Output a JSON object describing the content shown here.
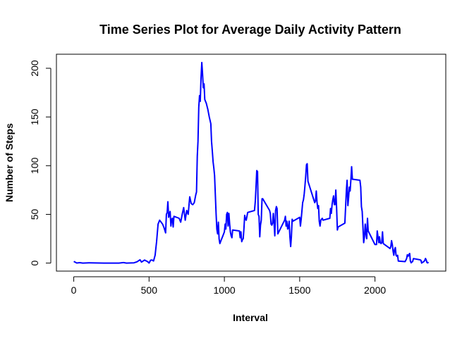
{
  "chart_data": {
    "type": "line",
    "title": "Time Series Plot for Average Daily Activity Pattern",
    "xlabel": "Interval",
    "ylabel": "Number of Steps",
    "xlim": [
      -115,
      2470
    ],
    "ylim": [
      -8.24,
      214.43
    ],
    "xticks": [
      0,
      500,
      1000,
      1500,
      2000
    ],
    "yticks": [
      0,
      50,
      100,
      150,
      200
    ],
    "grid": false,
    "legend": "none",
    "series": [
      {
        "color": "#0000ff",
        "points": [
          [
            0,
            1.7
          ],
          [
            20,
            0.1
          ],
          [
            40,
            0.4
          ],
          [
            60,
            0.0
          ],
          [
            100,
            0.3
          ],
          [
            200,
            0.0
          ],
          [
            300,
            0.0
          ],
          [
            330,
            0.5
          ],
          [
            350,
            0.0
          ],
          [
            400,
            0.3
          ],
          [
            420,
            1.3
          ],
          [
            440,
            3.4
          ],
          [
            450,
            1.0
          ],
          [
            470,
            3.1
          ],
          [
            490,
            1.5
          ],
          [
            500,
            0.0
          ],
          [
            510,
            3.0
          ],
          [
            520,
            3.1
          ],
          [
            530,
            2.2
          ],
          [
            540,
            8.0
          ],
          [
            550,
            22.0
          ],
          [
            560,
            40.0
          ],
          [
            570,
            44.0
          ],
          [
            580,
            42.0
          ],
          [
            590,
            40.0
          ],
          [
            600,
            36.0
          ],
          [
            610,
            31.0
          ],
          [
            615,
            50.0
          ],
          [
            620,
            52.0
          ],
          [
            625,
            63.0
          ],
          [
            630,
            47.0
          ],
          [
            640,
            53.0
          ],
          [
            645,
            38.0
          ],
          [
            650,
            45.0
          ],
          [
            655,
            46.0
          ],
          [
            660,
            37.0
          ],
          [
            665,
            48.0
          ],
          [
            700,
            46.0
          ],
          [
            710,
            42.0
          ],
          [
            720,
            50.0
          ],
          [
            730,
            57.0
          ],
          [
            740,
            44.0
          ],
          [
            750,
            54.0
          ],
          [
            760,
            50.0
          ],
          [
            770,
            68.0
          ],
          [
            780,
            61.0
          ],
          [
            790,
            60.0
          ],
          [
            800,
            62.0
          ],
          [
            810,
            70.0
          ],
          [
            815,
            73.0
          ],
          [
            820,
            110.0
          ],
          [
            825,
            125.0
          ],
          [
            830,
            160.0
          ],
          [
            835,
            172.0
          ],
          [
            840,
            166.0
          ],
          [
            845,
            190.0
          ],
          [
            850,
            206.0
          ],
          [
            855,
            195.0
          ],
          [
            860,
            180.0
          ],
          [
            865,
            184.0
          ],
          [
            870,
            168.0
          ],
          [
            880,
            164.0
          ],
          [
            890,
            158.0
          ],
          [
            900,
            150.0
          ],
          [
            910,
            143.0
          ],
          [
            915,
            125.0
          ],
          [
            920,
            115.0
          ],
          [
            925,
            104.0
          ],
          [
            930,
            98.0
          ],
          [
            935,
            90.0
          ],
          [
            940,
            70.0
          ],
          [
            945,
            50.0
          ],
          [
            950,
            35.0
          ],
          [
            955,
            30.0
          ],
          [
            960,
            42.0
          ],
          [
            965,
            25.0
          ],
          [
            970,
            20.0
          ],
          [
            980,
            24.0
          ],
          [
            990,
            28.0
          ],
          [
            1000,
            32.0
          ],
          [
            1005,
            40.0
          ],
          [
            1010,
            35.0
          ],
          [
            1015,
            50.0
          ],
          [
            1020,
            52.0
          ],
          [
            1025,
            38.0
          ],
          [
            1030,
            51.0
          ],
          [
            1035,
            40.0
          ],
          [
            1040,
            32.0
          ],
          [
            1045,
            28.0
          ],
          [
            1050,
            26.0
          ],
          [
            1055,
            34.0
          ],
          [
            1100,
            33.0
          ],
          [
            1105,
            26.0
          ],
          [
            1110,
            32.0
          ],
          [
            1115,
            22.0
          ],
          [
            1120,
            24.0
          ],
          [
            1125,
            25.0
          ],
          [
            1130,
            36.0
          ],
          [
            1135,
            49.0
          ],
          [
            1140,
            45.0
          ],
          [
            1145,
            44.0
          ],
          [
            1150,
            48.0
          ],
          [
            1155,
            52.0
          ],
          [
            1200,
            54.0
          ],
          [
            1205,
            63.0
          ],
          [
            1210,
            77.0
          ],
          [
            1215,
            95.0
          ],
          [
            1220,
            94.0
          ],
          [
            1225,
            50.0
          ],
          [
            1230,
            48.0
          ],
          [
            1235,
            27.0
          ],
          [
            1240,
            39.0
          ],
          [
            1245,
            44.0
          ],
          [
            1250,
            66.0
          ],
          [
            1255,
            66.0
          ],
          [
            1300,
            54.0
          ],
          [
            1305,
            51.0
          ],
          [
            1310,
            40.0
          ],
          [
            1315,
            39.0
          ],
          [
            1320,
            41.0
          ],
          [
            1325,
            51.0
          ],
          [
            1330,
            40.0
          ],
          [
            1335,
            28.0
          ],
          [
            1340,
            54.0
          ],
          [
            1345,
            58.0
          ],
          [
            1350,
            56.0
          ],
          [
            1355,
            30.0
          ],
          [
            1400,
            44.0
          ],
          [
            1405,
            48.0
          ],
          [
            1410,
            38.0
          ],
          [
            1415,
            43.0
          ],
          [
            1420,
            35.0
          ],
          [
            1425,
            36.0
          ],
          [
            1430,
            43.0
          ],
          [
            1435,
            27.0
          ],
          [
            1440,
            17.0
          ],
          [
            1445,
            27.0
          ],
          [
            1450,
            45.0
          ],
          [
            1455,
            43.0
          ],
          [
            1500,
            47.0
          ],
          [
            1505,
            38.0
          ],
          [
            1510,
            45.0
          ],
          [
            1515,
            54.0
          ],
          [
            1520,
            62.0
          ],
          [
            1525,
            65.0
          ],
          [
            1530,
            71.0
          ],
          [
            1535,
            79.0
          ],
          [
            1540,
            89.0
          ],
          [
            1545,
            101.0
          ],
          [
            1550,
            102.0
          ],
          [
            1555,
            84.0
          ],
          [
            1600,
            62.0
          ],
          [
            1605,
            64.0
          ],
          [
            1610,
            74.0
          ],
          [
            1615,
            63.0
          ],
          [
            1620,
            56.0
          ],
          [
            1625,
            59.0
          ],
          [
            1630,
            43.0
          ],
          [
            1635,
            38.0
          ],
          [
            1640,
            44.0
          ],
          [
            1645,
            45.0
          ],
          [
            1650,
            46.0
          ],
          [
            1655,
            44.0
          ],
          [
            1700,
            46.0
          ],
          [
            1705,
            56.0
          ],
          [
            1710,
            51.0
          ],
          [
            1715,
            60.0
          ],
          [
            1720,
            65.0
          ],
          [
            1725,
            69.0
          ],
          [
            1730,
            60.0
          ],
          [
            1735,
            60.0
          ],
          [
            1740,
            75.0
          ],
          [
            1745,
            57.0
          ],
          [
            1750,
            34.0
          ],
          [
            1755,
            37.0
          ],
          [
            1800,
            41.0
          ],
          [
            1805,
            58.0
          ],
          [
            1810,
            75.0
          ],
          [
            1815,
            85.0
          ],
          [
            1820,
            59.0
          ],
          [
            1825,
            68.0
          ],
          [
            1830,
            78.0
          ],
          [
            1835,
            74.0
          ],
          [
            1840,
            86.0
          ],
          [
            1845,
            99.0
          ],
          [
            1850,
            86.0
          ],
          [
            1855,
            86.0
          ],
          [
            1900,
            85.0
          ],
          [
            1905,
            78.0
          ],
          [
            1910,
            58.0
          ],
          [
            1915,
            53.0
          ],
          [
            1920,
            36.0
          ],
          [
            1925,
            21.0
          ],
          [
            1930,
            27.0
          ],
          [
            1935,
            40.0
          ],
          [
            1940,
            30.0
          ],
          [
            1945,
            25.0
          ],
          [
            1950,
            46.0
          ],
          [
            1955,
            33.0
          ],
          [
            2000,
            19.0
          ],
          [
            2005,
            19.0
          ],
          [
            2010,
            19.0
          ],
          [
            2015,
            33.0
          ],
          [
            2020,
            27.0
          ],
          [
            2025,
            21.0
          ],
          [
            2030,
            27.0
          ],
          [
            2035,
            21.0
          ],
          [
            2040,
            20.0
          ],
          [
            2045,
            21.0
          ],
          [
            2050,
            32.0
          ],
          [
            2055,
            20.0
          ],
          [
            2100,
            15.0
          ],
          [
            2105,
            17.0
          ],
          [
            2110,
            23.0
          ],
          [
            2115,
            19.0
          ],
          [
            2120,
            12.0
          ],
          [
            2125,
            8.0
          ],
          [
            2130,
            14.0
          ],
          [
            2135,
            16.0
          ],
          [
            2140,
            8.0
          ],
          [
            2145,
            7.0
          ],
          [
            2150,
            8.0
          ],
          [
            2155,
            2.0
          ],
          [
            2200,
            1.5
          ],
          [
            2205,
            3.0
          ],
          [
            2210,
            4.8
          ],
          [
            2215,
            8.5
          ],
          [
            2220,
            7.0
          ],
          [
            2225,
            8.7
          ],
          [
            2230,
            9.8
          ],
          [
            2235,
            2.2
          ],
          [
            2240,
            0.3
          ],
          [
            2245,
            1.1
          ],
          [
            2250,
            1.6
          ],
          [
            2255,
            4.6
          ],
          [
            2300,
            3.3
          ],
          [
            2305,
            2.8
          ],
          [
            2310,
            0.0
          ],
          [
            2315,
            0.8
          ],
          [
            2320,
            1.0
          ],
          [
            2325,
            1.6
          ],
          [
            2330,
            2.6
          ],
          [
            2335,
            4.7
          ],
          [
            2340,
            3.3
          ],
          [
            2345,
            0.6
          ],
          [
            2350,
            0.2
          ],
          [
            2355,
            1.1
          ]
        ]
      }
    ]
  }
}
